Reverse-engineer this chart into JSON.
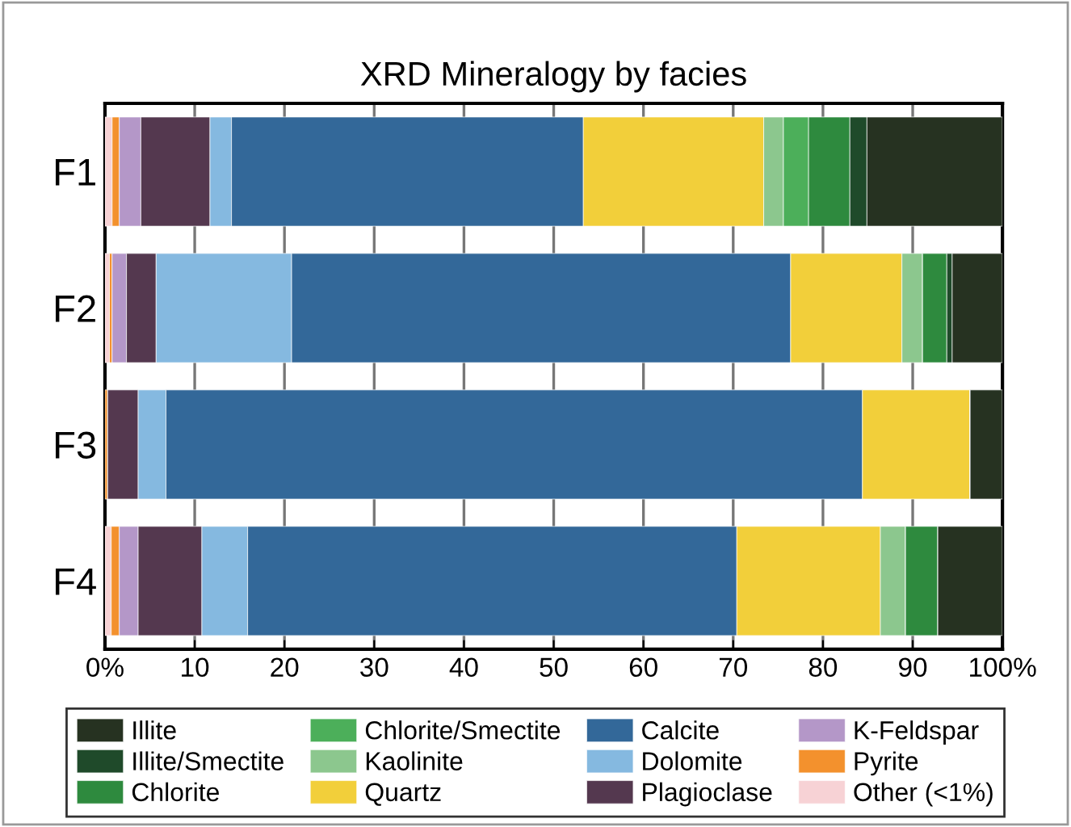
{
  "chart_data": {
    "type": "bar",
    "orientation": "horizontal",
    "stacked": true,
    "title": "XRD Mineralogy by facies",
    "categories": [
      "F1",
      "F2",
      "F3",
      "F4"
    ],
    "series": [
      {
        "name": "Other (<1%)",
        "color": "#f7d2d5",
        "values": [
          0.8,
          0.5,
          0,
          0.7
        ]
      },
      {
        "name": "Pyrite",
        "color": "#f3912d",
        "values": [
          0.8,
          0.3,
          0.3,
          0.9
        ]
      },
      {
        "name": "K-Feldspar",
        "color": "#b497c8",
        "values": [
          2.4,
          1.6,
          0,
          2.1
        ]
      },
      {
        "name": "Plagioclase",
        "color": "#54384f",
        "values": [
          7.7,
          3.3,
          3.4,
          7.1
        ]
      },
      {
        "name": "Dolomite",
        "color": "#85b9e0",
        "values": [
          2.4,
          15.1,
          3.1,
          5.1
        ]
      },
      {
        "name": "Calcite",
        "color": "#336899",
        "values": [
          39.2,
          55.6,
          77.6,
          54.5
        ]
      },
      {
        "name": "Quartz",
        "color": "#f2cf3a",
        "values": [
          20.1,
          12.4,
          12.0,
          16.0
        ]
      },
      {
        "name": "Kaolinite",
        "color": "#8cc78e",
        "values": [
          2.2,
          2.3,
          0,
          2.8
        ]
      },
      {
        "name": "Chlorite/Smectite",
        "color": "#4caf5a",
        "values": [
          2.8,
          0,
          0,
          0
        ]
      },
      {
        "name": "Chlorite",
        "color": "#2e8a3e",
        "values": [
          4.6,
          2.7,
          0,
          3.6
        ]
      },
      {
        "name": "Illite/Smectite",
        "color": "#1f4a2a",
        "values": [
          1.9,
          0.6,
          0,
          0
        ]
      },
      {
        "name": "Illite",
        "color": "#263221",
        "values": [
          15.1,
          5.6,
          3.6,
          7.2
        ]
      }
    ],
    "xlim": [
      0,
      100
    ],
    "xticks": [
      {
        "value": 0,
        "label": "0%"
      },
      10,
      20,
      30,
      40,
      50,
      60,
      70,
      80,
      90,
      {
        "value": 100,
        "label": "100%"
      }
    ],
    "grid": "x",
    "legend": "bottom"
  }
}
